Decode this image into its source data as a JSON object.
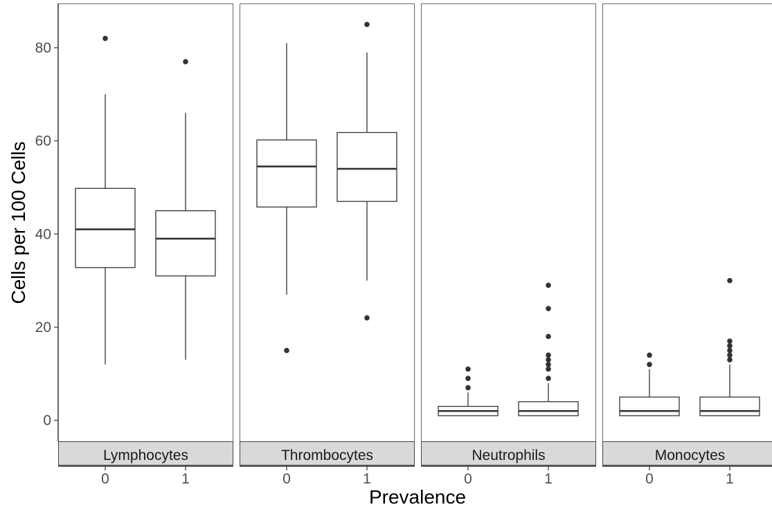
{
  "chart_data": {
    "type": "boxplot",
    "xlabel": "Prevalence",
    "ylabel": "Cells per 100 Cells",
    "ylim": [
      -4.5,
      89.5
    ],
    "yticks": [
      0,
      20,
      40,
      60,
      80
    ],
    "x_categories": [
      "0",
      "1"
    ],
    "grid": false,
    "facet_position": "bottom",
    "facets": [
      {
        "label": "Lymphocytes",
        "boxes": [
          {
            "x": "0",
            "whisker_low": 12,
            "q1": 32.8,
            "median": 41,
            "q3": 49.8,
            "whisker_high": 70,
            "outliers": [
              82
            ]
          },
          {
            "x": "1",
            "whisker_low": 13,
            "q1": 31,
            "median": 39,
            "q3": 45,
            "whisker_high": 66,
            "outliers": [
              77
            ]
          }
        ]
      },
      {
        "label": "Thrombocytes",
        "boxes": [
          {
            "x": "0",
            "whisker_low": 27,
            "q1": 45.8,
            "median": 54.5,
            "q3": 60.2,
            "whisker_high": 81,
            "outliers": [
              15
            ]
          },
          {
            "x": "1",
            "whisker_low": 30,
            "q1": 47,
            "median": 54,
            "q3": 61.8,
            "whisker_high": 79,
            "outliers": [
              22,
              85
            ]
          }
        ]
      },
      {
        "label": "Neutrophils",
        "boxes": [
          {
            "x": "0",
            "whisker_low": 1,
            "q1": 1,
            "median": 2,
            "q3": 3,
            "whisker_high": 6,
            "outliers": [
              7,
              9,
              11
            ]
          },
          {
            "x": "1",
            "whisker_low": 1,
            "q1": 1,
            "median": 2,
            "q3": 4,
            "whisker_high": 8,
            "outliers": [
              9,
              11,
              12,
              13,
              14,
              18,
              24,
              29
            ]
          }
        ]
      },
      {
        "label": "Monocytes",
        "boxes": [
          {
            "x": "0",
            "whisker_low": 1,
            "q1": 1,
            "median": 2,
            "q3": 5,
            "whisker_high": 11,
            "outliers": [
              12,
              14
            ]
          },
          {
            "x": "1",
            "whisker_low": 1,
            "q1": 1,
            "median": 2,
            "q3": 5,
            "whisker_high": 12,
            "outliers": [
              13,
              14,
              15,
              16,
              17,
              30
            ]
          }
        ]
      }
    ],
    "colors": {
      "box_fill": "#ffffff",
      "box_line": "#333333",
      "outlier": "#333333",
      "strip_fill": "#d9d9d9",
      "panel_border": "#666666"
    }
  }
}
